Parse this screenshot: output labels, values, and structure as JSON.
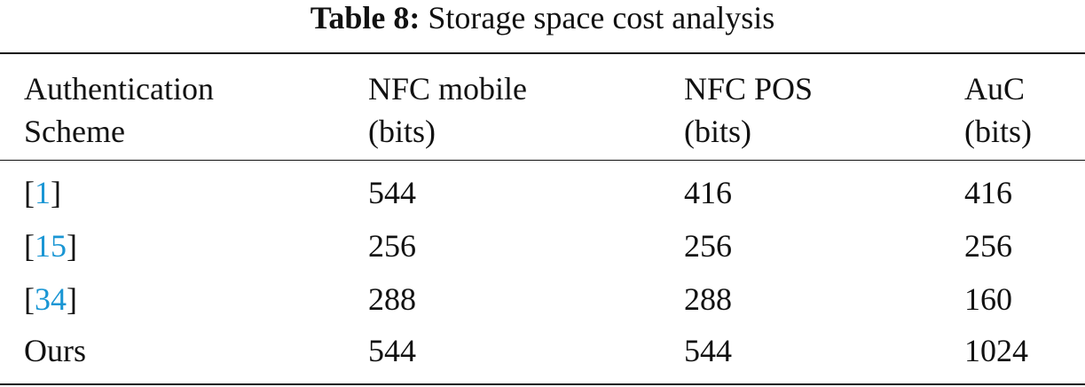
{
  "caption": {
    "label": "Table 8:",
    "text": "Storage space cost analysis"
  },
  "columns": [
    {
      "line1": "Authentication",
      "line2": "Scheme"
    },
    {
      "line1": "NFC mobile",
      "line2": "(bits)"
    },
    {
      "line1": "NFC POS",
      "line2": "(bits)"
    },
    {
      "line1": "AuC",
      "line2": "(bits)"
    }
  ],
  "rows": [
    {
      "open": "[",
      "ref": "1",
      "close": "]",
      "scheme": "",
      "mobile": "544",
      "pos": "416",
      "auc": "416"
    },
    {
      "open": "[",
      "ref": "15",
      "close": "]",
      "scheme": "",
      "mobile": "256",
      "pos": "256",
      "auc": "256"
    },
    {
      "open": "[",
      "ref": "34",
      "close": "]",
      "scheme": "",
      "mobile": "288",
      "pos": "288",
      "auc": "160"
    },
    {
      "open": "",
      "ref": "",
      "close": "",
      "scheme": "Ours",
      "mobile": "544",
      "pos": "544",
      "auc": "1024"
    }
  ],
  "colors": {
    "text": "#111111",
    "reference_link": "#1a96d4",
    "background": "#ffffff"
  }
}
